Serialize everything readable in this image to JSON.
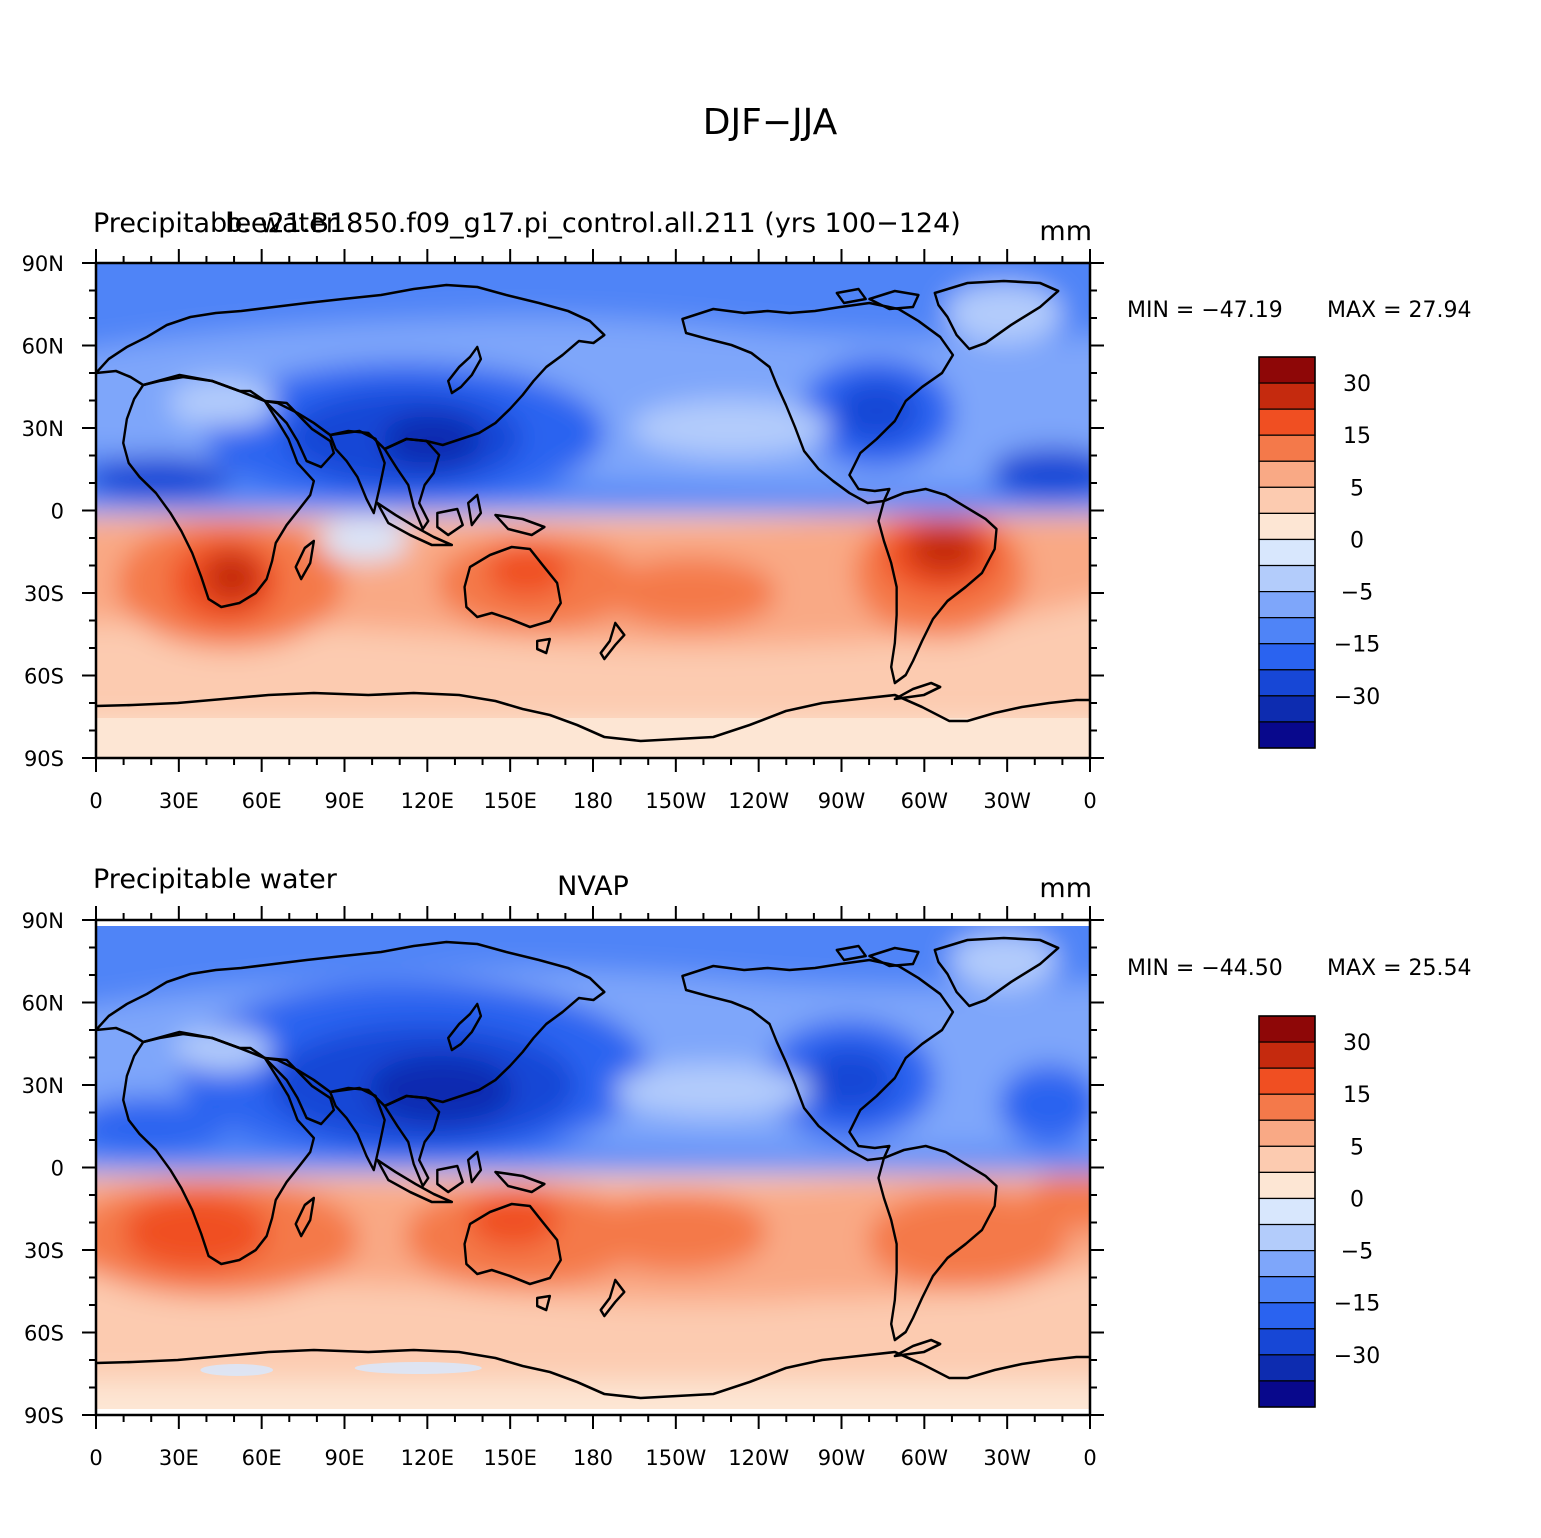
{
  "figure": {
    "title": "DJF−JJA"
  },
  "colors": {
    "levels": [
      "#08088c",
      "#0d2cb0",
      "#1747d6",
      "#2a63f0",
      "#4f84f7",
      "#7ea6fa",
      "#b3ccfb",
      "#d8e7fd",
      "#fde6d4",
      "#fccbb0",
      "#f9a985",
      "#f4794a",
      "#f04f22",
      "#c52a0e",
      "#8e0707"
    ],
    "coastline": "#000000"
  },
  "colorbar": {
    "labels": [
      "−30",
      "−15",
      "−5",
      "0",
      "5",
      "15",
      "30"
    ]
  },
  "axes": {
    "x_ticks": [
      "0",
      "30E",
      "60E",
      "90E",
      "120E",
      "150E",
      "180",
      "150W",
      "120W",
      "90W",
      "60W",
      "30W",
      "0"
    ],
    "y_ticks": [
      "90N",
      "60N",
      "30N",
      "0",
      "30S",
      "60S",
      "90S"
    ]
  },
  "panels": [
    {
      "left_label": "Precipitable water",
      "center_label": "b.e21.B1850.f09_g17.pi_control.all.211 (yrs 100−124)",
      "right_label": "mm",
      "min_text": "MIN = −47.19",
      "max_text": "MAX =   27.94",
      "min": -47.19,
      "max": 27.94
    },
    {
      "left_label": "Precipitable water",
      "center_label": "NVAP",
      "right_label": "mm",
      "min_text": "MIN = −44.50",
      "max_text": "MAX =   25.54",
      "min": -44.5,
      "max": 25.54
    }
  ]
}
